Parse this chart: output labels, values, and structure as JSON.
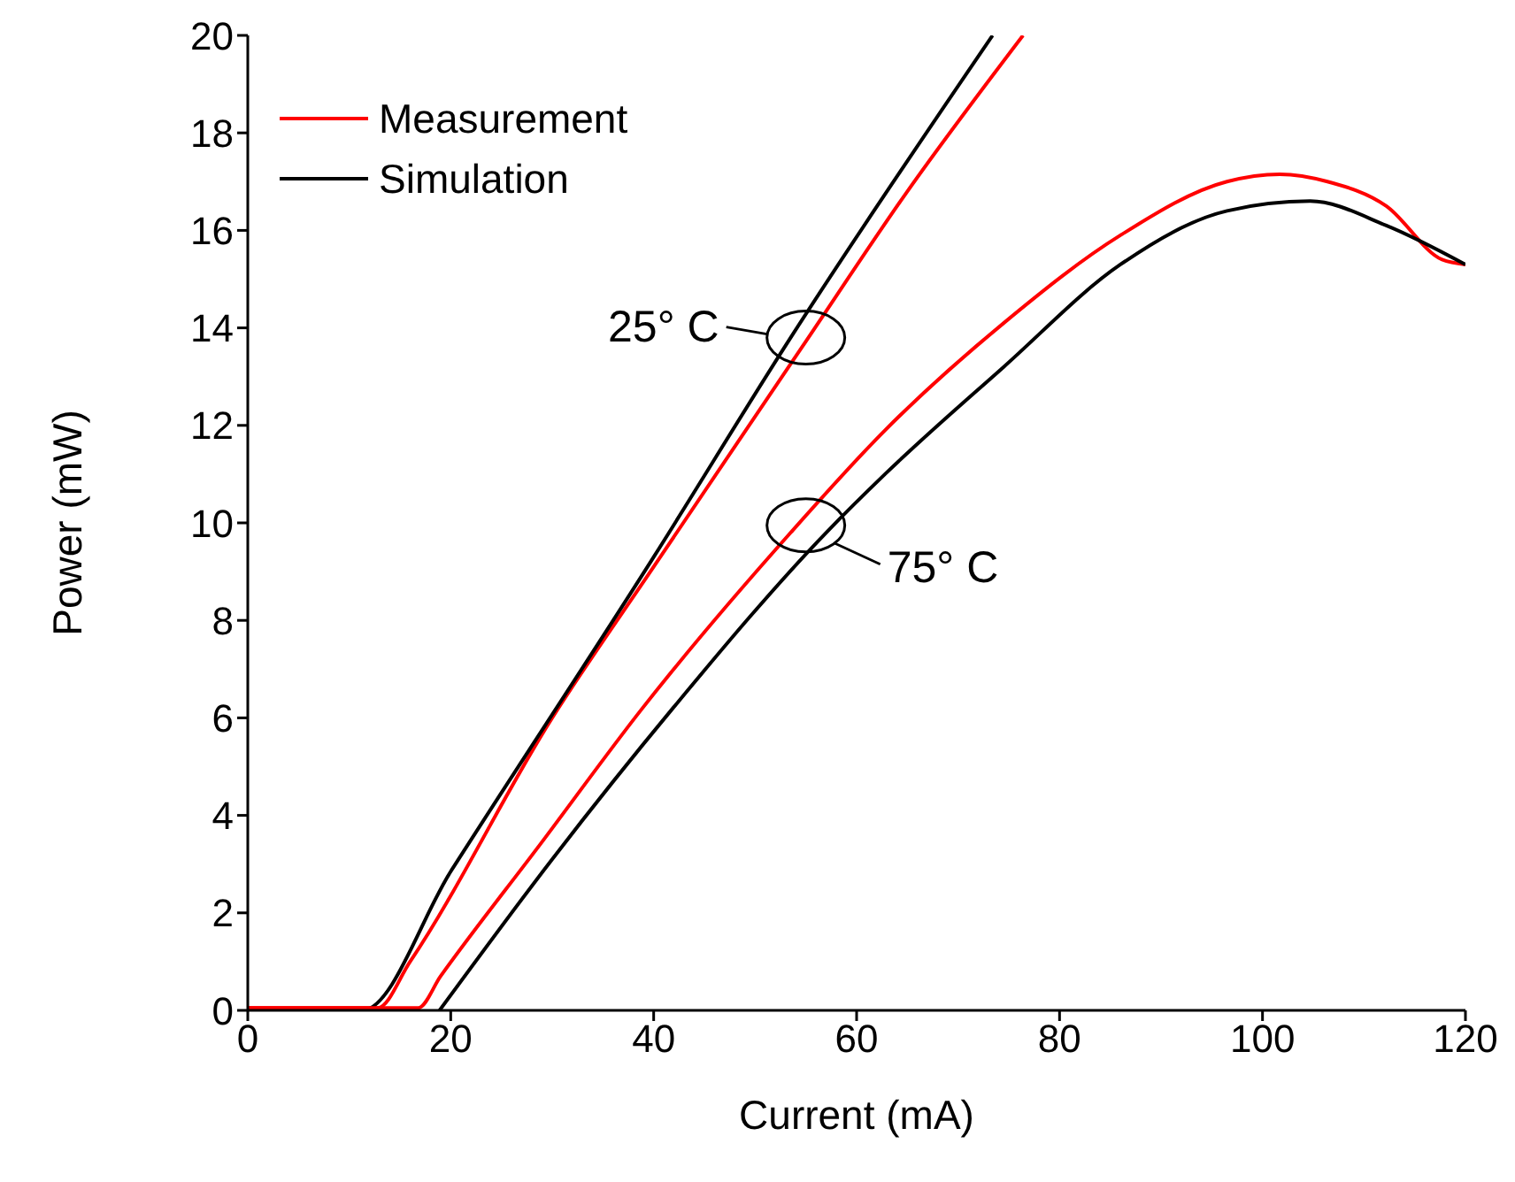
{
  "chart_data": {
    "type": "line",
    "xlabel": "Current (mA)",
    "ylabel": "Power (mW)",
    "xlim": [
      0,
      120
    ],
    "ylim": [
      0,
      20
    ],
    "xticks": [
      0,
      20,
      40,
      60,
      80,
      100,
      120
    ],
    "yticks": [
      0,
      2,
      4,
      6,
      8,
      10,
      12,
      14,
      16,
      18,
      20
    ],
    "grid": false,
    "legend": "top left",
    "marker": "none",
    "line_style": "solid",
    "series": [
      {
        "name": "Measurement",
        "color": "#ff0000",
        "x": [
          0,
          12.8,
          16,
          30,
          40,
          54.6,
          65,
          76.4
        ],
        "values": [
          0.05,
          0.05,
          1.0,
          6.0,
          9.1,
          13.6,
          16.8,
          20
        ]
      },
      {
        "name": "Simulation",
        "color": "#000000",
        "x": [
          0,
          11.3,
          20,
          40,
          53.5,
          73.4
        ],
        "values": [
          0,
          0,
          2.85,
          9.3,
          13.8,
          20
        ]
      },
      {
        "color": "#ff0000",
        "x": [
          0,
          16.8,
          19,
          28.8,
          38.9,
          53.5,
          62.8,
          74.5,
          86,
          96.5,
          101.7,
          106.4,
          112.2,
          117.7,
          120
        ],
        "values": [
          0.05,
          0.05,
          0.7,
          3.4,
          6.2,
          9.8,
          11.9,
          14.1,
          15.9,
          17.0,
          17.15,
          17.0,
          16.5,
          15.4,
          15.3
        ]
      },
      {
        "color": "#000000",
        "x": [
          18.9,
          30,
          41.9,
          57,
          62.8,
          74.5,
          86,
          96.5,
          104.7,
          112.2,
          120
        ],
        "values": [
          0,
          3.1,
          6.2,
          9.8,
          11.0,
          13.2,
          15.3,
          16.4,
          16.6,
          16.1,
          15.3
        ]
      }
    ],
    "annotations": [
      {
        "text": "25° C",
        "x": 55,
        "y": 13.8
      },
      {
        "text": "75° C",
        "x": 55,
        "y": 9.95
      }
    ]
  }
}
